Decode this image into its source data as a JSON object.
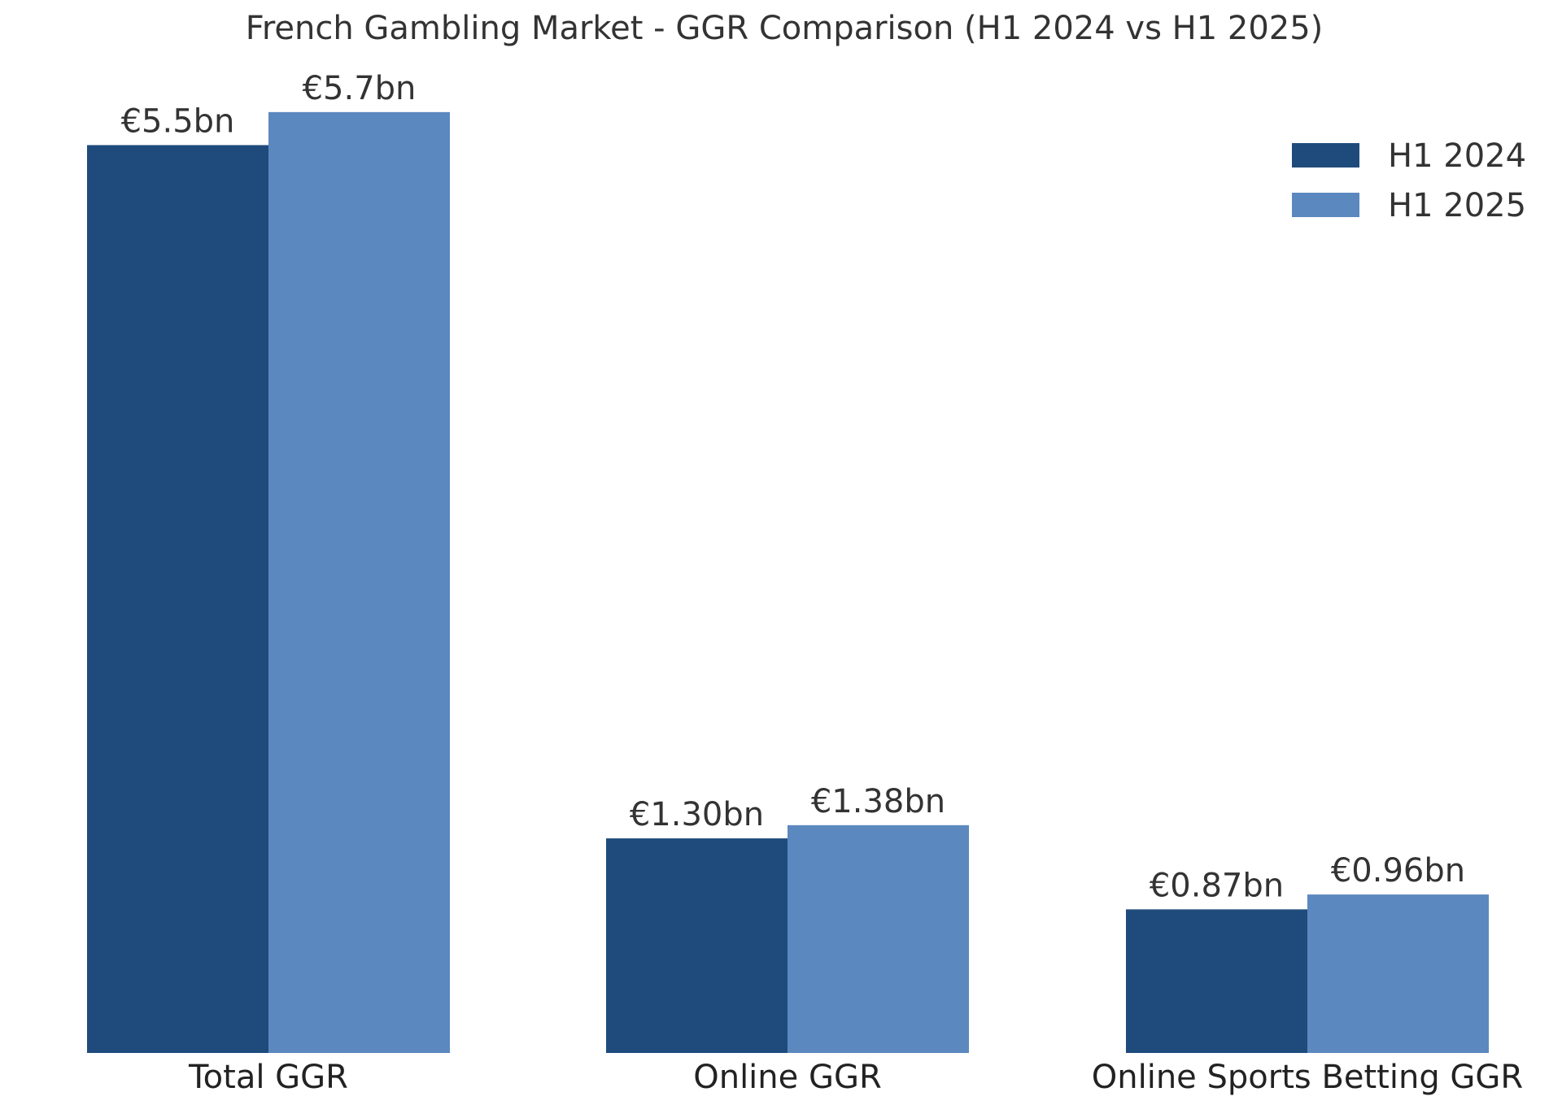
{
  "chart_data": {
    "type": "bar",
    "title": "French Gambling Market - GGR Comparison (H1 2024 vs H1 2025)",
    "xlabel": "",
    "ylabel": "",
    "ylim": [
      0,
      5.985
    ],
    "grid": false,
    "legend_position": "top-right",
    "categories": [
      "Total GGR",
      "Online GGR",
      "Online Sports Betting GGR"
    ],
    "series": [
      {
        "name": "H1 2024",
        "color": "#1f4b7c",
        "values": [
          5.5,
          1.3,
          0.87
        ],
        "labels": [
          "€5.5bn",
          "€1.30bn",
          "€0.87bn"
        ]
      },
      {
        "name": "H1 2025",
        "color": "#5b88bf",
        "values": [
          5.7,
          1.38,
          0.96
        ],
        "labels": [
          "€5.7bn",
          "€1.38bn",
          "€0.96bn"
        ]
      }
    ],
    "text_color": "#333333"
  }
}
